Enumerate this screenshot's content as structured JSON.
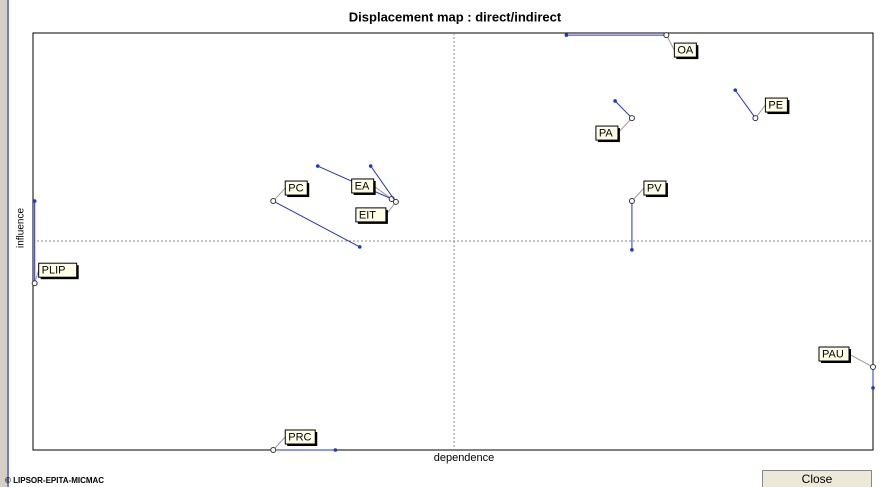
{
  "chart_data": {
    "type": "displacement",
    "title": "Displacement map :  direct/indirect",
    "x_label": "dependence",
    "y_label": "influence",
    "xlim": [
      0,
      100
    ],
    "ylim": [
      0,
      100
    ],
    "points": [
      {
        "label": "OA",
        "x": 75.4,
        "y": 99.5,
        "x_direct": 63.5,
        "y_direct": 99.5
      },
      {
        "label": "PE",
        "x": 86.0,
        "y": 79.6,
        "x_direct": 83.6,
        "y_direct": 86.3
      },
      {
        "label": "PA",
        "x": 71.3,
        "y": 79.6,
        "x_direct": 69.3,
        "y_direct": 83.7
      },
      {
        "label": "PV",
        "x": 71.3,
        "y": 59.7,
        "x_direct": 71.3,
        "y_direct": 48.0
      },
      {
        "label": "PC",
        "x": 28.6,
        "y": 59.7,
        "x_direct": 38.9,
        "y_direct": 48.7
      },
      {
        "label": "EA",
        "x": 42.7,
        "y": 60.2,
        "x_direct": 33.9,
        "y_direct": 68.1
      },
      {
        "label": "EIT",
        "x": 43.2,
        "y": 59.5,
        "x_direct": 40.2,
        "y_direct": 68.1
      },
      {
        "label": "PLIP",
        "x": 0.2,
        "y": 40.0,
        "x_direct": 0.2,
        "y_direct": 59.7
      },
      {
        "label": "PAU",
        "x": 100,
        "y": 19.9,
        "x_direct": 100,
        "y_direct": 14.9
      },
      {
        "label": "PRC",
        "x": 28.6,
        "y": 0,
        "x_direct": 36.0,
        "y_direct": 0
      }
    ]
  },
  "footer": {
    "copyright": "© LIPSOR-EPITA-MICMAC",
    "button": "Close"
  }
}
